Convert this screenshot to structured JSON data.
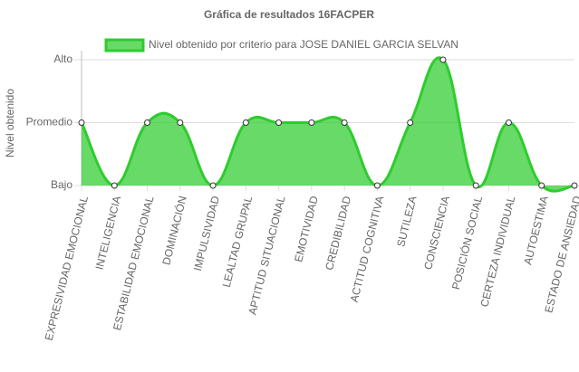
{
  "chart_data": {
    "type": "area",
    "title": "Gráfica de resultados 16FACPER",
    "y_label": "Nivel obtenido",
    "categories": [
      "EXPRESIVIDAD EMOCIONAL",
      "INTELIGENCIA",
      "ESTABILIDAD EMOCIONAL",
      "DOMINACIÓN",
      "IMPULSIVIDAD",
      "LEALTAD GRUPAL",
      "APTITUD SITUACIONAL",
      "EMOTIVIDAD",
      "CREDIBILIDAD",
      "ACTITUD COGNITIVA",
      "SUTILEZA",
      "CONSCIENCIA",
      "POSICIÓN SOCIAL",
      "CERTEZA INDIVIDUAL",
      "AUTOESTIMA",
      "ESTADO DE ANSIEDAD"
    ],
    "series": [
      {
        "name": "Nivel obtenido por criterio para JOSE DANIEL GARCIA SELVAN",
        "color": "#2ecc2e",
        "values": [
          1,
          0,
          1,
          1,
          0,
          1,
          1,
          1,
          1,
          0,
          1,
          2,
          0,
          1,
          0,
          0
        ]
      }
    ],
    "ylim": [
      0,
      2
    ],
    "yticks": [
      {
        "value": 0,
        "label": "Bajo"
      },
      {
        "value": 1,
        "label": "Promedio"
      },
      {
        "value": 2,
        "label": "Alto"
      }
    ],
    "grid": true,
    "legend": "top"
  }
}
